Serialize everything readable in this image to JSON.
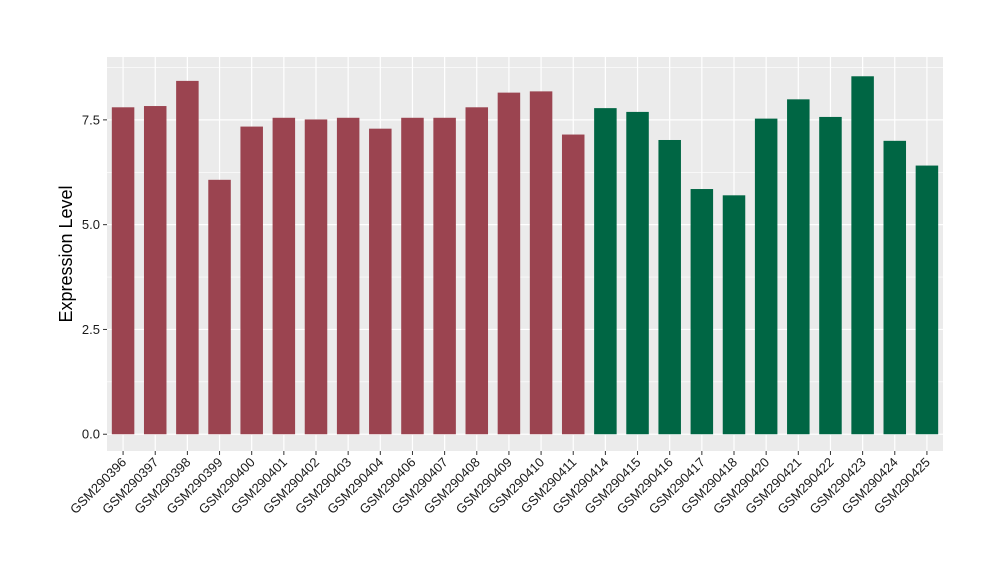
{
  "chart_data": {
    "type": "bar",
    "title": "",
    "xlabel": "",
    "ylabel": "Expression Level",
    "ylim": [
      -0.4,
      9.0
    ],
    "yticks": [
      0.0,
      2.5,
      5.0,
      7.5
    ],
    "ytick_labels": [
      "0.0",
      "2.5",
      "5.0",
      "7.5"
    ],
    "grid": true,
    "legend": "none",
    "panel_background": "#ebebeb",
    "categories": [
      "GSM290396",
      "GSM290397",
      "GSM290398",
      "GSM290399",
      "GSM290400",
      "GSM290401",
      "GSM290402",
      "GSM290403",
      "GSM290404",
      "GSM290406",
      "GSM290407",
      "GSM290408",
      "GSM290409",
      "GSM290410",
      "GSM290411",
      "GSM290414",
      "GSM290415",
      "GSM290416",
      "GSM290417",
      "GSM290418",
      "GSM290420",
      "GSM290421",
      "GSM290422",
      "GSM290423",
      "GSM290424",
      "GSM290425"
    ],
    "values": [
      7.8,
      7.83,
      8.43,
      6.07,
      7.34,
      7.55,
      7.51,
      7.55,
      7.29,
      7.55,
      7.55,
      7.8,
      8.15,
      8.18,
      7.15,
      7.78,
      7.69,
      7.02,
      5.85,
      5.7,
      7.53,
      7.99,
      7.57,
      8.54,
      7.0,
      6.41
    ],
    "colors": [
      "#9b4450",
      "#9b4450",
      "#9b4450",
      "#9b4450",
      "#9b4450",
      "#9b4450",
      "#9b4450",
      "#9b4450",
      "#9b4450",
      "#9b4450",
      "#9b4450",
      "#9b4450",
      "#9b4450",
      "#9b4450",
      "#9b4450",
      "#006644",
      "#006644",
      "#006644",
      "#006644",
      "#006644",
      "#006644",
      "#006644",
      "#006644",
      "#006644",
      "#006644",
      "#006644"
    ]
  }
}
